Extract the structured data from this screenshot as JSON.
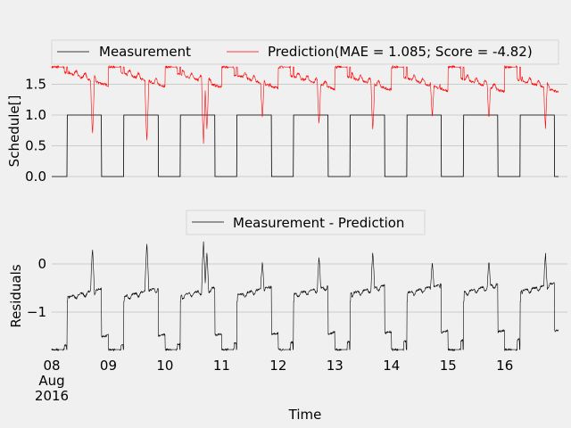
{
  "colors": {
    "background": "#f0f0f0",
    "grid": "#cbcbcb",
    "measurement": "#000000",
    "prediction": "#ff0000",
    "residual": "#000000"
  },
  "chart_data": [
    {
      "type": "line",
      "title": "",
      "ylabel": "Schedule[]",
      "xlabel": "",
      "ylim": [
        -0.05,
        1.9
      ],
      "yticks": [
        0.0,
        0.5,
        1.0,
        1.5
      ],
      "ytick_labels": [
        "0.0",
        "0.5",
        "1.0",
        "1.5"
      ],
      "grid": true,
      "legend_position": "top",
      "legend": [
        "Measurement",
        "Prediction(MAE = 1.085; Score = -4.82)"
      ],
      "measurement_schedule": {
        "description_on_intervals_days_since_aug_8": [
          [
            0.27,
            0.88
          ],
          [
            1.27,
            1.88
          ],
          [
            2.27,
            2.88
          ],
          [
            3.27,
            3.88
          ],
          [
            4.27,
            4.88
          ],
          [
            5.27,
            5.88
          ],
          [
            6.27,
            6.88
          ],
          [
            7.27,
            7.88
          ],
          [
            8.27,
            8.88
          ]
        ],
        "on_value": 1.0,
        "off_value": 0.0
      },
      "prediction_baseline": {
        "start": 1.66,
        "end": 1.52,
        "max": 1.78
      },
      "prediction_dip_minima": [
        0.65,
        0.48,
        0.55,
        0.78,
        0.9,
        0.85,
        0.75,
        0.88,
        0.92,
        0.77
      ]
    },
    {
      "type": "line",
      "title": "",
      "ylabel": "Residuals",
      "xlabel": "Time",
      "ylim": [
        -1.9,
        0.55
      ],
      "yticks": [
        -1,
        0
      ],
      "ytick_labels": [
        "−1",
        "0"
      ],
      "grid": true,
      "legend_position": "top",
      "legend": [
        "Measurement - Prediction"
      ]
    }
  ],
  "x_axis": {
    "label": "Time",
    "ticks": [
      "08",
      "09",
      "10",
      "11",
      "12",
      "13",
      "14",
      "15",
      "16"
    ],
    "first_tick_extra": [
      "Aug",
      "2016"
    ]
  }
}
